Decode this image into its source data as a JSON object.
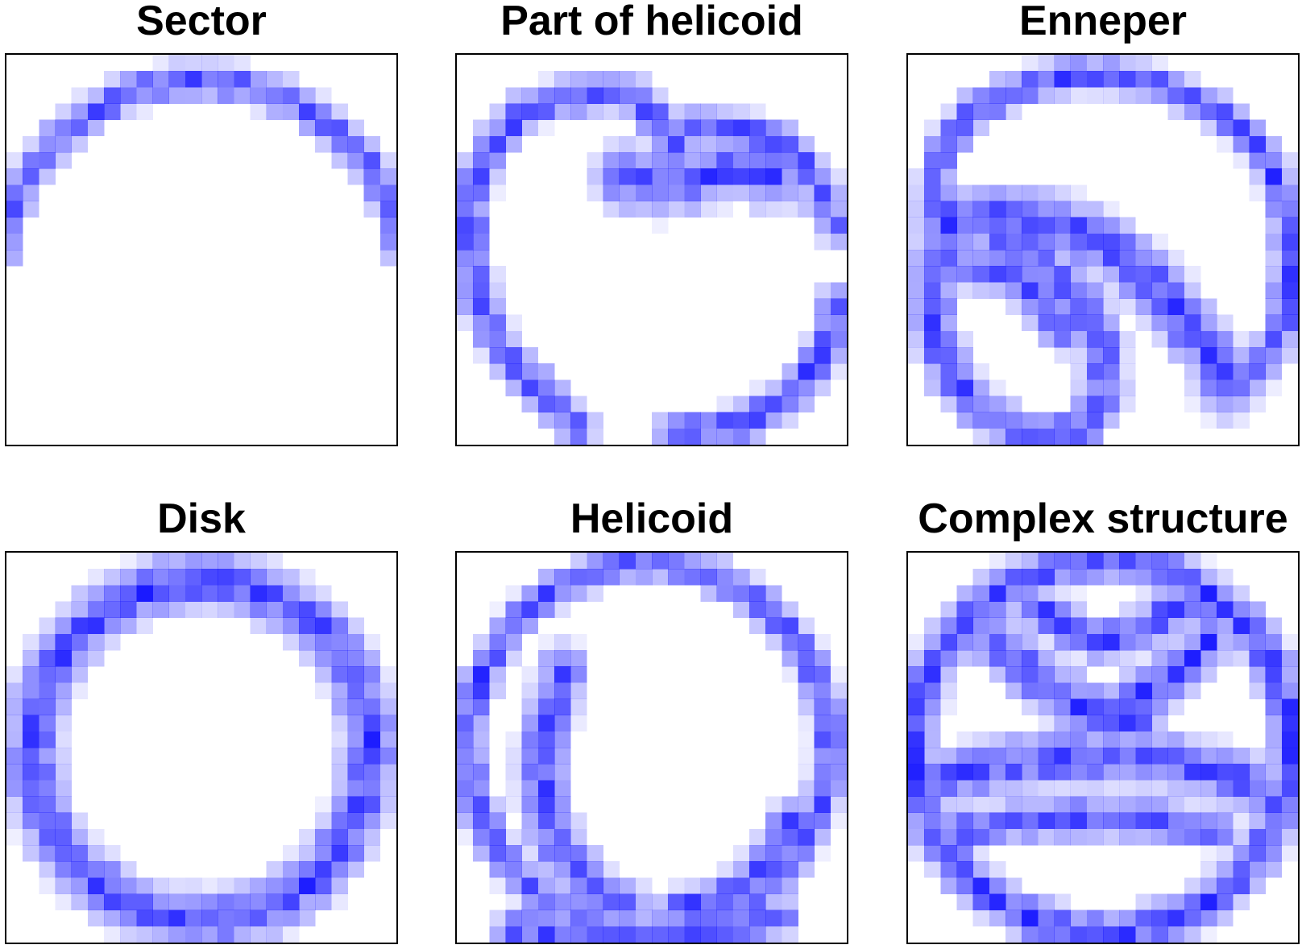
{
  "figure": {
    "ink_color": "#1a1aff",
    "frame_color": "#000000",
    "background": "#ffffff",
    "grid_resolution": 24,
    "panels": [
      {
        "id": "sector",
        "title": "Sector"
      },
      {
        "id": "part-of-helicoid",
        "title": "Part of helicoid"
      },
      {
        "id": "enneper",
        "title": "Enneper"
      },
      {
        "id": "disk",
        "title": "Disk"
      },
      {
        "id": "helicoid",
        "title": "Helicoid"
      },
      {
        "id": "complex-structure",
        "title": "Complex structure"
      }
    ]
  }
}
